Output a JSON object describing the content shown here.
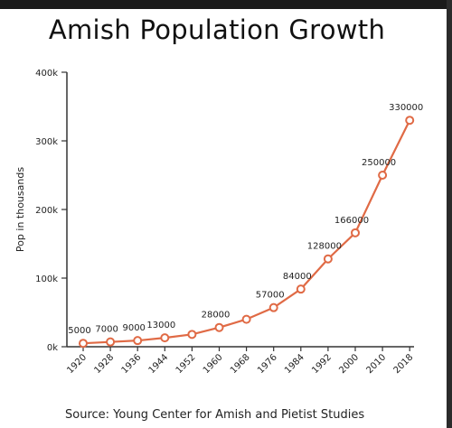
{
  "title": "Amish Population Growth",
  "source": "Source: Young Center for Amish and Pietist Studies",
  "colors": {
    "line": "#e06a45",
    "marker_fill": "#ffffff",
    "axis": "#333333",
    "text": "#222222"
  },
  "chart_data": {
    "type": "line",
    "title": "Amish Population Growth",
    "xlabel": "",
    "ylabel": "Pop in thousands",
    "x": [
      "1920",
      "1928",
      "1936",
      "1944",
      "1952",
      "1960",
      "1968",
      "1976",
      "1984",
      "1992",
      "2000",
      "2010",
      "2018"
    ],
    "yticks": [
      "0k",
      "100k",
      "200k",
      "300k",
      "400k"
    ],
    "ylim": [
      0,
      400000
    ],
    "grid": false,
    "series": [
      {
        "values": [
          5000,
          7000,
          9000,
          13000,
          18000,
          28000,
          40000,
          57000,
          84000,
          128000,
          166000,
          250000,
          330000
        ],
        "labels": [
          "5000",
          "7000",
          "9000",
          "13000",
          "",
          "28000",
          "",
          "57000",
          "84000",
          "128000",
          "166000",
          "250000",
          "330000"
        ]
      }
    ]
  }
}
